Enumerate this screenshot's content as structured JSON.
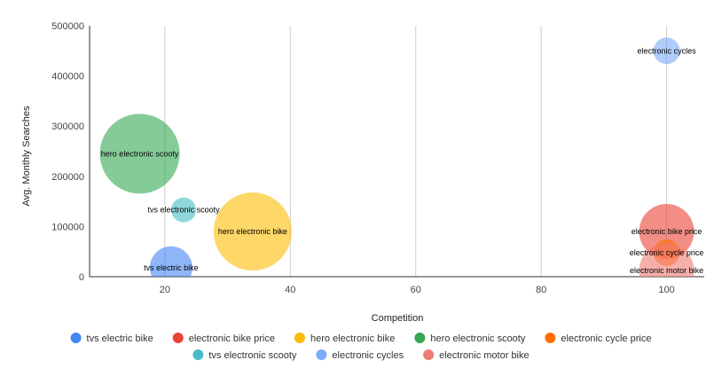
{
  "chart_data": {
    "type": "bubble",
    "xlabel": "Competition",
    "ylabel": "Avg. Monthly Searches",
    "xlim": [
      8,
      106
    ],
    "ylim": [
      0,
      500000
    ],
    "x_ticks": [
      "20",
      "40",
      "60",
      "80",
      "100"
    ],
    "y_ticks": [
      "0",
      "100000",
      "200000",
      "300000",
      "400000",
      "500000"
    ],
    "grid": "vertical",
    "legend_position": "bottom",
    "legend_rows": [
      [
        "tvs electric bike",
        "electronic bike price",
        "hero electronic bike",
        "hero electronic scooty",
        "electronic cycle price"
      ],
      [
        "tvs electronic scooty",
        "electronic cycles",
        "electronic motor bike"
      ]
    ],
    "series": [
      {
        "name": "tvs electric bike",
        "color": "#4285F4",
        "x": 21,
        "y": 18000,
        "size": 48,
        "label": "tvs electric bike"
      },
      {
        "name": "electronic bike price",
        "color": "#EA4335",
        "x": 100,
        "y": 90000,
        "size": 62,
        "label": "electronic bike price"
      },
      {
        "name": "hero electronic bike",
        "color": "#FBBC04",
        "x": 34,
        "y": 90000,
        "size": 88,
        "label": "hero electronic bike"
      },
      {
        "name": "hero electronic scooty",
        "color": "#34A853",
        "x": 16,
        "y": 245000,
        "size": 90,
        "label": "hero electronic scooty"
      },
      {
        "name": "electronic cycle price",
        "color": "#FF6D01",
        "x": 100,
        "y": 48000,
        "size": 30,
        "label": "electronic cycle price"
      },
      {
        "name": "tvs electronic scooty",
        "color": "#46BDC6",
        "x": 23,
        "y": 133000,
        "size": 28,
        "label": "tvs electronic scooty"
      },
      {
        "name": "electronic cycles",
        "color": "#7BAAF7",
        "x": 100,
        "y": 450000,
        "size": 30,
        "label": "electronic cycles"
      },
      {
        "name": "electronic motor bike",
        "color": "#F07B72",
        "x": 100,
        "y": 12000,
        "size": 62,
        "label": "electronic motor bike"
      }
    ]
  }
}
